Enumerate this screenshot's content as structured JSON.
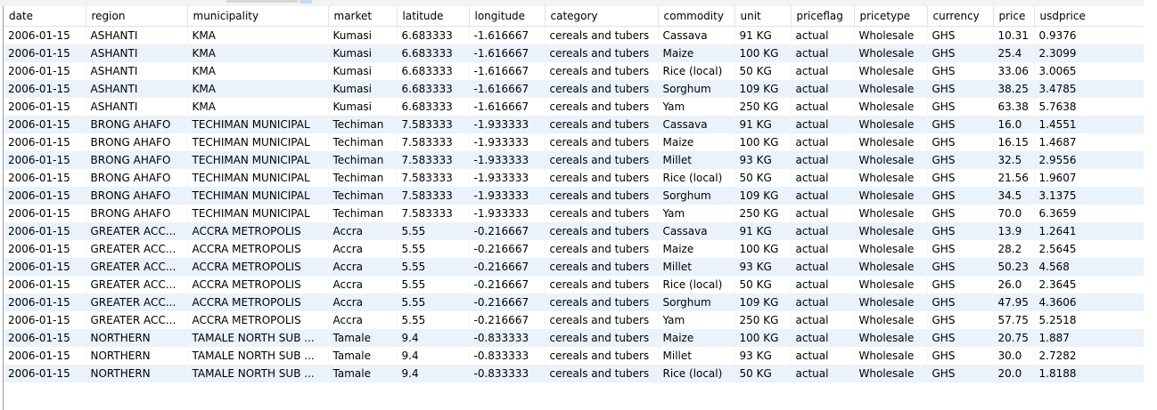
{
  "columns": [
    "date",
    "region",
    "municipality",
    "market",
    "latitude",
    "longitude",
    "category",
    "commodity",
    "unit",
    "priceflag",
    "pricetype",
    "currency",
    "price",
    "usdprice"
  ],
  "rows": [
    [
      "2006-01-15",
      "ASHANTI",
      "KMA",
      "Kumasi",
      "6.683333",
      "-1.616667",
      "cereals and tubers",
      "Cassava",
      "91 KG",
      "actual",
      "Wholesale",
      "GHS",
      "10.31",
      "0.9376"
    ],
    [
      "2006-01-15",
      "ASHANTI",
      "KMA",
      "Kumasi",
      "6.683333",
      "-1.616667",
      "cereals and tubers",
      "Maize",
      "100 KG",
      "actual",
      "Wholesale",
      "GHS",
      "25.4",
      "2.3099"
    ],
    [
      "2006-01-15",
      "ASHANTI",
      "KMA",
      "Kumasi",
      "6.683333",
      "-1.616667",
      "cereals and tubers",
      "Rice (local)",
      "50 KG",
      "actual",
      "Wholesale",
      "GHS",
      "33.06",
      "3.0065"
    ],
    [
      "2006-01-15",
      "ASHANTI",
      "KMA",
      "Kumasi",
      "6.683333",
      "-1.616667",
      "cereals and tubers",
      "Sorghum",
      "109 KG",
      "actual",
      "Wholesale",
      "GHS",
      "38.25",
      "3.4785"
    ],
    [
      "2006-01-15",
      "ASHANTI",
      "KMA",
      "Kumasi",
      "6.683333",
      "-1.616667",
      "cereals and tubers",
      "Yam",
      "250 KG",
      "actual",
      "Wholesale",
      "GHS",
      "63.38",
      "5.7638"
    ],
    [
      "2006-01-15",
      "BRONG AHAFO",
      "TECHIMAN MUNICIPAL",
      "Techiman",
      "7.583333",
      "-1.933333",
      "cereals and tubers",
      "Cassava",
      "91 KG",
      "actual",
      "Wholesale",
      "GHS",
      "16.0",
      "1.4551"
    ],
    [
      "2006-01-15",
      "BRONG AHAFO",
      "TECHIMAN MUNICIPAL",
      "Techiman",
      "7.583333",
      "-1.933333",
      "cereals and tubers",
      "Maize",
      "100 KG",
      "actual",
      "Wholesale",
      "GHS",
      "16.15",
      "1.4687"
    ],
    [
      "2006-01-15",
      "BRONG AHAFO",
      "TECHIMAN MUNICIPAL",
      "Techiman",
      "7.583333",
      "-1.933333",
      "cereals and tubers",
      "Millet",
      "93 KG",
      "actual",
      "Wholesale",
      "GHS",
      "32.5",
      "2.9556"
    ],
    [
      "2006-01-15",
      "BRONG AHAFO",
      "TECHIMAN MUNICIPAL",
      "Techiman",
      "7.583333",
      "-1.933333",
      "cereals and tubers",
      "Rice (local)",
      "50 KG",
      "actual",
      "Wholesale",
      "GHS",
      "21.56",
      "1.9607"
    ],
    [
      "2006-01-15",
      "BRONG AHAFO",
      "TECHIMAN MUNICIPAL",
      "Techiman",
      "7.583333",
      "-1.933333",
      "cereals and tubers",
      "Sorghum",
      "109 KG",
      "actual",
      "Wholesale",
      "GHS",
      "34.5",
      "3.1375"
    ],
    [
      "2006-01-15",
      "BRONG AHAFO",
      "TECHIMAN MUNICIPAL",
      "Techiman",
      "7.583333",
      "-1.933333",
      "cereals and tubers",
      "Yam",
      "250 KG",
      "actual",
      "Wholesale",
      "GHS",
      "70.0",
      "6.3659"
    ],
    [
      "2006-01-15",
      "GREATER ACC...",
      "ACCRA METROPOLIS",
      "Accra",
      "5.55",
      "-0.216667",
      "cereals and tubers",
      "Cassava",
      "91 KG",
      "actual",
      "Wholesale",
      "GHS",
      "13.9",
      "1.2641"
    ],
    [
      "2006-01-15",
      "GREATER ACC...",
      "ACCRA METROPOLIS",
      "Accra",
      "5.55",
      "-0.216667",
      "cereals and tubers",
      "Maize",
      "100 KG",
      "actual",
      "Wholesale",
      "GHS",
      "28.2",
      "2.5645"
    ],
    [
      "2006-01-15",
      "GREATER ACC...",
      "ACCRA METROPOLIS",
      "Accra",
      "5.55",
      "-0.216667",
      "cereals and tubers",
      "Millet",
      "93 KG",
      "actual",
      "Wholesale",
      "GHS",
      "50.23",
      "4.568"
    ],
    [
      "2006-01-15",
      "GREATER ACC...",
      "ACCRA METROPOLIS",
      "Accra",
      "5.55",
      "-0.216667",
      "cereals and tubers",
      "Rice (local)",
      "50 KG",
      "actual",
      "Wholesale",
      "GHS",
      "26.0",
      "2.3645"
    ],
    [
      "2006-01-15",
      "GREATER ACC...",
      "ACCRA METROPOLIS",
      "Accra",
      "5.55",
      "-0.216667",
      "cereals and tubers",
      "Sorghum",
      "109 KG",
      "actual",
      "Wholesale",
      "GHS",
      "47.95",
      "4.3606"
    ],
    [
      "2006-01-15",
      "GREATER ACC...",
      "ACCRA METROPOLIS",
      "Accra",
      "5.55",
      "-0.216667",
      "cereals and tubers",
      "Yam",
      "250 KG",
      "actual",
      "Wholesale",
      "GHS",
      "57.75",
      "5.2518"
    ],
    [
      "2006-01-15",
      "NORTHERN",
      "TAMALE NORTH SUB ...",
      "Tamale",
      "9.4",
      "-0.833333",
      "cereals and tubers",
      "Maize",
      "100 KG",
      "actual",
      "Wholesale",
      "GHS",
      "20.75",
      "1.887"
    ],
    [
      "2006-01-15",
      "NORTHERN",
      "TAMALE NORTH SUB ...",
      "Tamale",
      "9.4",
      "-0.833333",
      "cereals and tubers",
      "Millet",
      "93 KG",
      "actual",
      "Wholesale",
      "GHS",
      "30.0",
      "2.7282"
    ],
    [
      "2006-01-15",
      "NORTHERN",
      "TAMALE NORTH SUB ...",
      "Tamale",
      "9.4",
      "-0.833333",
      "cereals and tubers",
      "Rice (local)",
      "50 KG",
      "actual",
      "Wholesale",
      "GHS",
      "20.0",
      "1.8188"
    ]
  ],
  "colors": {
    "row_alt": "#eaf2fb",
    "row_base": "#ffffff",
    "border": "#a0a0a0"
  }
}
